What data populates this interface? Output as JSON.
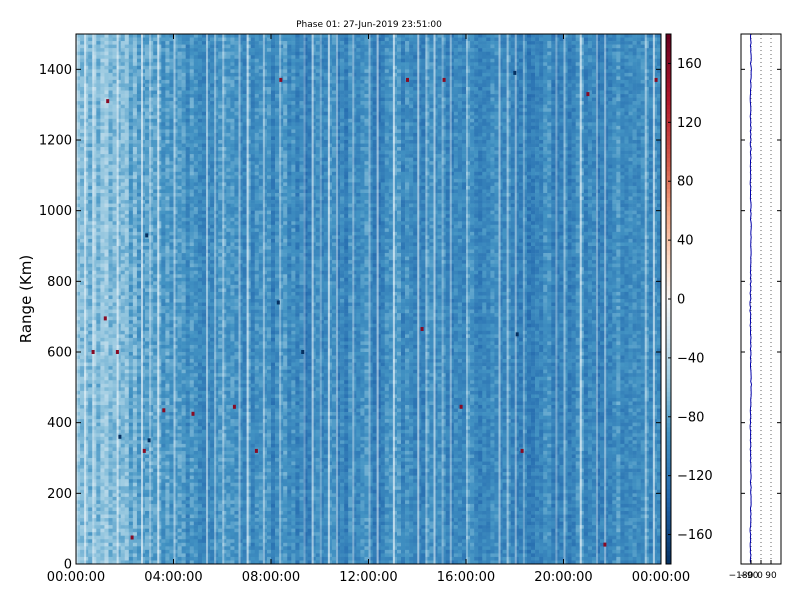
{
  "chart_data": [
    {
      "type": "heatmap",
      "title": "Phase 01: 27-Jun-2019 23:51:00",
      "xlabel": "",
      "ylabel": "Range (Km)",
      "x_tick_labels": [
        "00:00:00",
        "04:00:00",
        "08:00:00",
        "12:00:00",
        "16:00:00",
        "20:00:00",
        "00:00:00"
      ],
      "x_range_hours": [
        0,
        24
      ],
      "y_ticks": [
        0,
        200,
        400,
        600,
        800,
        1000,
        1200,
        1400
      ],
      "ylim": [
        0,
        1500
      ],
      "colorscale": "RdBu_r",
      "color_range": [
        -180,
        180
      ],
      "value_description": "phase values mostly between -140 and -60 across the full grid, with scattered outliers near +160 and -180",
      "grid": false,
      "colorbar": {
        "ticks": [
          -160,
          -120,
          -80,
          -40,
          0,
          40,
          80,
          120,
          160
        ],
        "range": [
          -180,
          180
        ]
      },
      "outliers": [
        {
          "time_h": 1.3,
          "range_km": 1310,
          "value": 160
        },
        {
          "time_h": 1.2,
          "range_km": 695,
          "value": 160
        },
        {
          "time_h": 0.7,
          "range_km": 600,
          "value": 160
        },
        {
          "time_h": 1.7,
          "range_km": 600,
          "value": 160
        },
        {
          "time_h": 2.3,
          "range_km": 75,
          "value": 160
        },
        {
          "time_h": 2.8,
          "range_km": 320,
          "value": 160
        },
        {
          "time_h": 3.6,
          "range_km": 435,
          "value": 160
        },
        {
          "time_h": 4.8,
          "range_km": 425,
          "value": 160
        },
        {
          "time_h": 6.5,
          "range_km": 445,
          "value": 160
        },
        {
          "time_h": 7.4,
          "range_km": 320,
          "value": 160
        },
        {
          "time_h": 8.4,
          "range_km": 1370,
          "value": 160
        },
        {
          "time_h": 13.6,
          "range_km": 1370,
          "value": 160
        },
        {
          "time_h": 14.2,
          "range_km": 665,
          "value": 160
        },
        {
          "time_h": 15.1,
          "range_km": 1370,
          "value": 160
        },
        {
          "time_h": 15.8,
          "range_km": 445,
          "value": 160
        },
        {
          "time_h": 18.3,
          "range_km": 320,
          "value": 160
        },
        {
          "time_h": 21.0,
          "range_km": 1330,
          "value": 160
        },
        {
          "time_h": 21.7,
          "range_km": 55,
          "value": 160
        },
        {
          "time_h": 23.8,
          "range_km": 1370,
          "value": 160
        },
        {
          "time_h": 1.8,
          "range_km": 360,
          "value": -180
        },
        {
          "time_h": 2.9,
          "range_km": 930,
          "value": -180
        },
        {
          "time_h": 3.0,
          "range_km": 350,
          "value": -180
        },
        {
          "time_h": 8.3,
          "range_km": 740,
          "value": -180
        },
        {
          "time_h": 9.3,
          "range_km": 600,
          "value": -180
        },
        {
          "time_h": 18.0,
          "range_km": 1390,
          "value": -180
        },
        {
          "time_h": 18.1,
          "range_km": 650,
          "value": -180
        }
      ]
    },
    {
      "type": "line",
      "x_tick_labels": [
        "−180",
        "−90",
        "0",
        "90"
      ],
      "xlim": [
        -180,
        180
      ],
      "ylim": [
        0,
        1500
      ],
      "gridlines_x": [
        -90,
        0,
        90,
        180
      ],
      "series": [
        {
          "y": [
            0,
            100,
            200,
            300,
            400,
            500,
            600,
            700,
            800,
            900,
            1000,
            1100,
            1200,
            1300,
            1400,
            1500
          ],
          "x": [
            -92,
            -95,
            -90,
            -94,
            -96,
            -88,
            -92,
            -97,
            -93,
            -90,
            -91,
            -94,
            -92,
            -95,
            -90,
            -93
          ]
        }
      ]
    }
  ]
}
